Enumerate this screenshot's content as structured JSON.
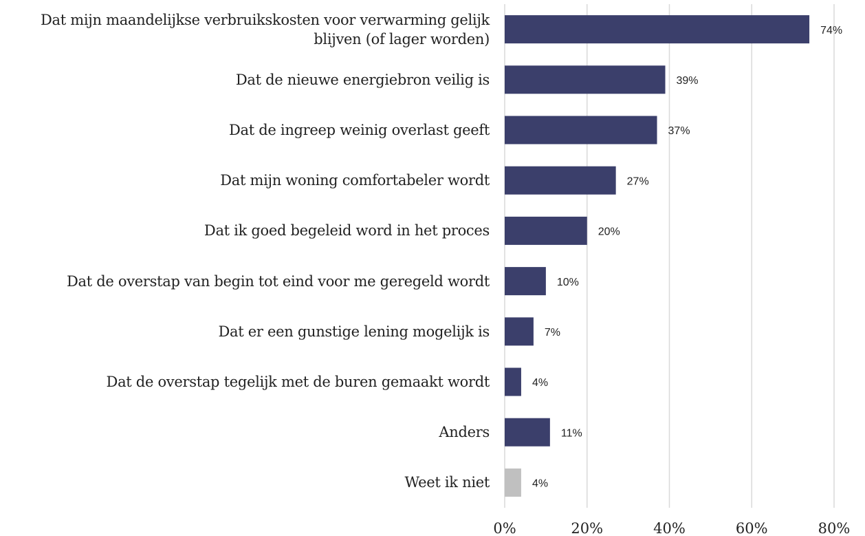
{
  "chart_data": {
    "type": "barh",
    "categories": [
      "Dat mijn maandelijkse verbruikskosten voor verwarming gelijk blijven (of lager worden)",
      "Dat de nieuwe energiebron veilig is",
      "Dat de ingreep weinig overlast geeft",
      "Dat mijn woning comfortabeler wordt",
      "Dat ik goed begeleid word in het proces",
      "Dat de overstap van begin tot eind voor me geregeld wordt",
      "Dat er een gunstige lening mogelijk is",
      "Dat de overstap tegelijk met de buren gemaakt wordt",
      "Anders",
      "Weet ik niet"
    ],
    "values": [
      74,
      39,
      37,
      27,
      20,
      10,
      7,
      4,
      11,
      4
    ],
    "value_labels": [
      "74%",
      "39%",
      "37%",
      "27%",
      "20%",
      "10%",
      "7%",
      "4%",
      "11%",
      "4%"
    ],
    "colors": [
      "#3b3f6b",
      "#3b3f6b",
      "#3b3f6b",
      "#3b3f6b",
      "#3b3f6b",
      "#3b3f6b",
      "#3b3f6b",
      "#3b3f6b",
      "#3b3f6b",
      "#c0c0c0"
    ],
    "xlim": [
      0,
      80
    ],
    "xticks": [
      {
        "value": 0,
        "label": "0%"
      },
      {
        "value": 20,
        "label": "20%"
      },
      {
        "value": 40,
        "label": "40%"
      },
      {
        "value": 60,
        "label": "60%"
      },
      {
        "value": 80,
        "label": "80%"
      }
    ],
    "grid": true
  }
}
